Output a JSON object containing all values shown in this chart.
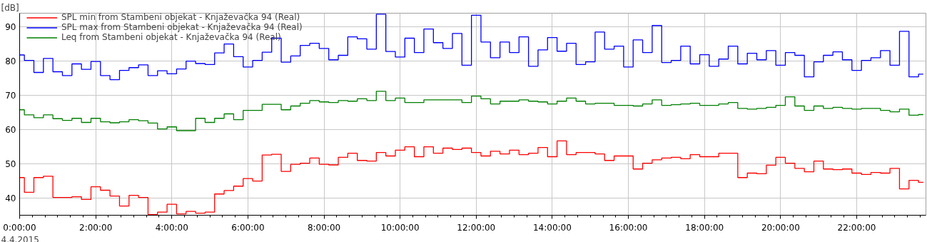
{
  "chart_data": {
    "type": "step",
    "ylabel": "[dB]",
    "annotations": [
      "4.4.2015"
    ],
    "x": [
      0,
      0.25,
      0.5,
      0.75,
      1,
      1.25,
      1.5,
      1.75,
      2,
      2.25,
      2.5,
      2.75,
      3,
      3.25,
      3.5,
      3.75,
      4,
      4.25,
      4.5,
      4.75,
      5,
      5.25,
      5.5,
      5.75,
      6,
      6.25,
      6.5,
      6.75,
      7,
      7.25,
      7.5,
      7.75,
      8,
      8.25,
      8.5,
      8.75,
      9,
      9.25,
      9.5,
      9.75,
      10,
      10.25,
      10.5,
      10.75,
      11,
      11.25,
      11.5,
      11.75,
      12,
      12.25,
      12.5,
      12.75,
      13,
      13.25,
      13.5,
      13.75,
      14,
      14.25,
      14.5,
      14.75,
      15,
      15.25,
      15.5,
      15.75,
      16,
      16.25,
      16.5,
      16.75,
      17,
      17.25,
      17.5,
      17.75,
      18,
      18.25,
      18.5,
      18.75,
      19,
      19.25,
      19.5,
      19.75,
      20,
      20.25,
      20.5,
      20.75,
      21,
      21.25,
      21.5,
      21.75,
      22,
      22.25,
      22.5,
      22.75,
      23,
      23.25,
      23.5,
      23.75
    ],
    "series": [
      {
        "name": "SPL min from Stambeni objekat - Knjaževačka 94 (Real)",
        "color": "#ff0000",
        "values": [
          46.0,
          41.7,
          46.0,
          46.4,
          40.2,
          40.2,
          40.4,
          39.6,
          43.3,
          42.3,
          40.6,
          37.7,
          40.8,
          40.2,
          35.2,
          35.9,
          38.2,
          35.4,
          36.1,
          35.6,
          35.9,
          41.2,
          42.2,
          43.5,
          45.7,
          45.0,
          52.6,
          52.8,
          47.8,
          49.9,
          50.2,
          51.7,
          49.9,
          49.7,
          51.9,
          53.1,
          51.0,
          50.8,
          53.3,
          52.3,
          54.0,
          55.0,
          52.1,
          55.0,
          53.1,
          54.6,
          54.2,
          54.6,
          53.3,
          52.3,
          53.7,
          52.9,
          54.0,
          52.7,
          53.1,
          54.8,
          52.1,
          56.7,
          52.7,
          53.3,
          53.3,
          52.9,
          51.0,
          52.3,
          52.3,
          48.5,
          50.2,
          51.2,
          51.7,
          51.9,
          51.5,
          52.7,
          52.1,
          52.1,
          53.1,
          53.1,
          46.0,
          47.3,
          47.1,
          49.6,
          51.9,
          50.2,
          48.7,
          47.7,
          50.8,
          48.5,
          48.3,
          48.5,
          47.3,
          46.9,
          47.5,
          47.3,
          48.7,
          42.7,
          45.2,
          44.6
        ]
      },
      {
        "name": "SPL max from Stambeni objekat - Knjaževačka 94 (Real)",
        "color": "#0000ff",
        "values": [
          81.8,
          80.2,
          76.7,
          80.8,
          76.9,
          75.8,
          79.2,
          77.6,
          79.9,
          75.8,
          74.6,
          77.3,
          78.1,
          78.9,
          75.8,
          77.2,
          76.3,
          77.7,
          80.0,
          79.3,
          79.0,
          82.4,
          85.0,
          81.3,
          78.3,
          80.2,
          82.6,
          86.7,
          79.7,
          81.5,
          84.6,
          85.2,
          83.7,
          80.4,
          81.7,
          87.1,
          86.5,
          83.5,
          93.7,
          82.8,
          81.2,
          86.7,
          82.5,
          89.4,
          85.4,
          83.7,
          88.1,
          78.8,
          93.4,
          85.6,
          81.0,
          85.6,
          82.5,
          87.1,
          78.5,
          83.3,
          86.9,
          82.9,
          85.2,
          79.0,
          79.8,
          88.5,
          83.5,
          84.4,
          78.3,
          86.2,
          82.5,
          90.4,
          79.6,
          80.2,
          84.4,
          79.2,
          81.9,
          78.5,
          80.6,
          84.4,
          79.2,
          82.3,
          80.4,
          83.1,
          78.8,
          82.5,
          81.7,
          75.4,
          79.8,
          81.7,
          82.7,
          80.4,
          77.3,
          80.2,
          81.0,
          83.1,
          78.8,
          88.7,
          75.4,
          76.2
        ]
      },
      {
        "name": "Leq from Stambeni objekat - Knjaževačka 94 (Real)",
        "color": "#008000",
        "values": [
          65.8,
          64.3,
          63.5,
          64.3,
          63.2,
          62.7,
          63.3,
          62.1,
          63.3,
          62.3,
          62.0,
          62.3,
          62.9,
          62.6,
          61.9,
          60.2,
          60.8,
          59.7,
          59.7,
          63.3,
          62.1,
          63.3,
          64.6,
          62.9,
          65.6,
          65.6,
          67.4,
          67.4,
          65.8,
          66.9,
          67.7,
          68.5,
          68.1,
          67.9,
          68.5,
          68.3,
          69.0,
          68.5,
          71.2,
          68.5,
          69.2,
          67.9,
          67.9,
          68.7,
          68.7,
          68.7,
          68.7,
          67.9,
          69.8,
          69.0,
          67.5,
          68.3,
          68.3,
          68.7,
          68.3,
          68.1,
          67.5,
          68.3,
          69.2,
          68.3,
          67.5,
          67.7,
          67.7,
          67.1,
          67.1,
          66.9,
          67.5,
          68.7,
          67.1,
          67.3,
          67.5,
          67.7,
          67.1,
          67.1,
          67.5,
          67.9,
          66.2,
          66.0,
          66.2,
          66.5,
          67.1,
          69.6,
          66.9,
          65.6,
          66.9,
          66.2,
          66.5,
          66.2,
          66.0,
          66.2,
          66.2,
          65.6,
          65.2,
          66.0,
          64.2,
          64.4
        ]
      }
    ],
    "xlim": [
      0,
      23.82
    ],
    "ylim": [
      35,
      94
    ],
    "xticks": [
      {
        "value": 0,
        "label": "0:00:00"
      },
      {
        "value": 0.3333,
        "label": null
      },
      {
        "value": 0.6667,
        "label": null
      },
      {
        "value": 1,
        "label": null
      },
      {
        "value": 1.3333,
        "label": null
      },
      {
        "value": 1.6667,
        "label": null
      },
      {
        "value": 2,
        "label": "2:00:00"
      },
      {
        "value": 2.3333,
        "label": null
      },
      {
        "value": 2.6667,
        "label": null
      },
      {
        "value": 3,
        "label": null
      },
      {
        "value": 3.3333,
        "label": null
      },
      {
        "value": 3.6667,
        "label": null
      },
      {
        "value": 4,
        "label": "4:00:00"
      },
      {
        "value": 4.3333,
        "label": null
      },
      {
        "value": 4.6667,
        "label": null
      },
      {
        "value": 5,
        "label": null
      },
      {
        "value": 5.3333,
        "label": null
      },
      {
        "value": 5.6667,
        "label": null
      },
      {
        "value": 6,
        "label": "6:00:00"
      },
      {
        "value": 6.3333,
        "label": null
      },
      {
        "value": 6.6667,
        "label": null
      },
      {
        "value": 7,
        "label": null
      },
      {
        "value": 7.3333,
        "label": null
      },
      {
        "value": 7.6667,
        "label": null
      },
      {
        "value": 8,
        "label": "8:00:00"
      },
      {
        "value": 8.3333,
        "label": null
      },
      {
        "value": 8.6667,
        "label": null
      },
      {
        "value": 9,
        "label": null
      },
      {
        "value": 9.3333,
        "label": null
      },
      {
        "value": 9.6667,
        "label": null
      },
      {
        "value": 10,
        "label": "10:00:00"
      },
      {
        "value": 10.3333,
        "label": null
      },
      {
        "value": 10.6667,
        "label": null
      },
      {
        "value": 11,
        "label": null
      },
      {
        "value": 11.3333,
        "label": null
      },
      {
        "value": 11.6667,
        "label": null
      },
      {
        "value": 12,
        "label": "12:00:00"
      },
      {
        "value": 12.3333,
        "label": null
      },
      {
        "value": 12.6667,
        "label": null
      },
      {
        "value": 13,
        "label": null
      },
      {
        "value": 13.3333,
        "label": null
      },
      {
        "value": 13.6667,
        "label": null
      },
      {
        "value": 14,
        "label": "14:00:00"
      },
      {
        "value": 14.3333,
        "label": null
      },
      {
        "value": 14.6667,
        "label": null
      },
      {
        "value": 15,
        "label": null
      },
      {
        "value": 15.3333,
        "label": null
      },
      {
        "value": 15.6667,
        "label": null
      },
      {
        "value": 16,
        "label": "16:00:00"
      },
      {
        "value": 16.3333,
        "label": null
      },
      {
        "value": 16.6667,
        "label": null
      },
      {
        "value": 17,
        "label": null
      },
      {
        "value": 17.3333,
        "label": null
      },
      {
        "value": 17.6667,
        "label": null
      },
      {
        "value": 18,
        "label": "18:00:00"
      },
      {
        "value": 18.3333,
        "label": null
      },
      {
        "value": 18.6667,
        "label": null
      },
      {
        "value": 19,
        "label": null
      },
      {
        "value": 19.3333,
        "label": null
      },
      {
        "value": 19.6667,
        "label": null
      },
      {
        "value": 20,
        "label": "20:00:00"
      },
      {
        "value": 20.3333,
        "label": null
      },
      {
        "value": 20.6667,
        "label": null
      },
      {
        "value": 21,
        "label": null
      },
      {
        "value": 21.3333,
        "label": null
      },
      {
        "value": 21.6667,
        "label": null
      },
      {
        "value": 22,
        "label": "22:00:00"
      },
      {
        "value": 22.3333,
        "label": null
      },
      {
        "value": 22.6667,
        "label": null
      },
      {
        "value": 23,
        "label": null
      },
      {
        "value": 23.3333,
        "label": null
      },
      {
        "value": 23.6667,
        "label": null
      }
    ],
    "yticks": [
      40,
      50,
      60,
      70,
      80,
      90
    ],
    "grid": true,
    "legend": "top left",
    "line_style": "solid"
  }
}
